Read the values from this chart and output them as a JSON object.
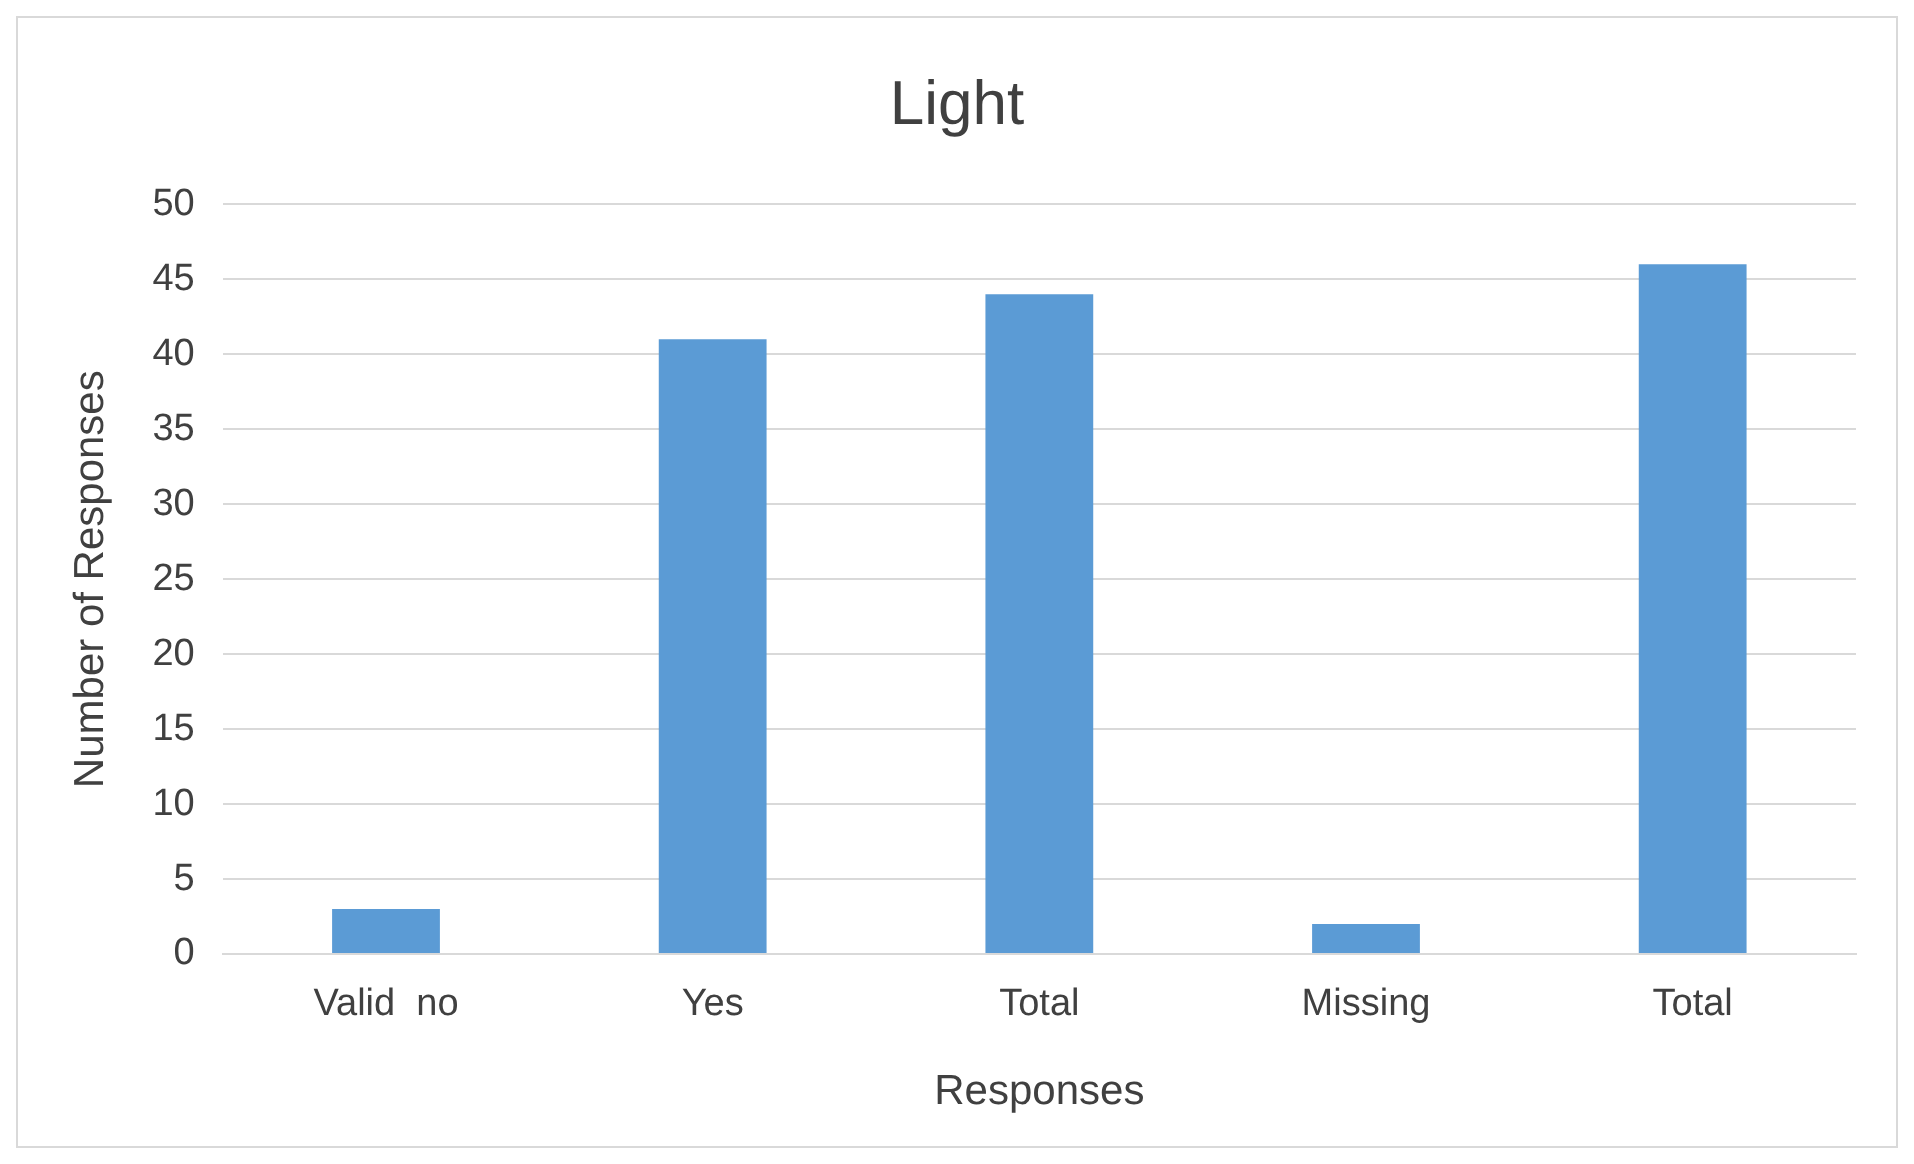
{
  "chart_data": {
    "type": "bar",
    "title": "Light",
    "xlabel": "Responses",
    "ylabel": "Number of Responses",
    "categories": [
      "Valid  no",
      "Yes",
      "Total",
      "Missing",
      "Total"
    ],
    "values": [
      3,
      41,
      44,
      2,
      46
    ],
    "color": "#5b9bd5",
    "ylim": [
      0,
      50
    ],
    "yticks": [
      0,
      5,
      10,
      15,
      20,
      25,
      30,
      35,
      40,
      45,
      50
    ],
    "grid": "y",
    "legend": false
  }
}
